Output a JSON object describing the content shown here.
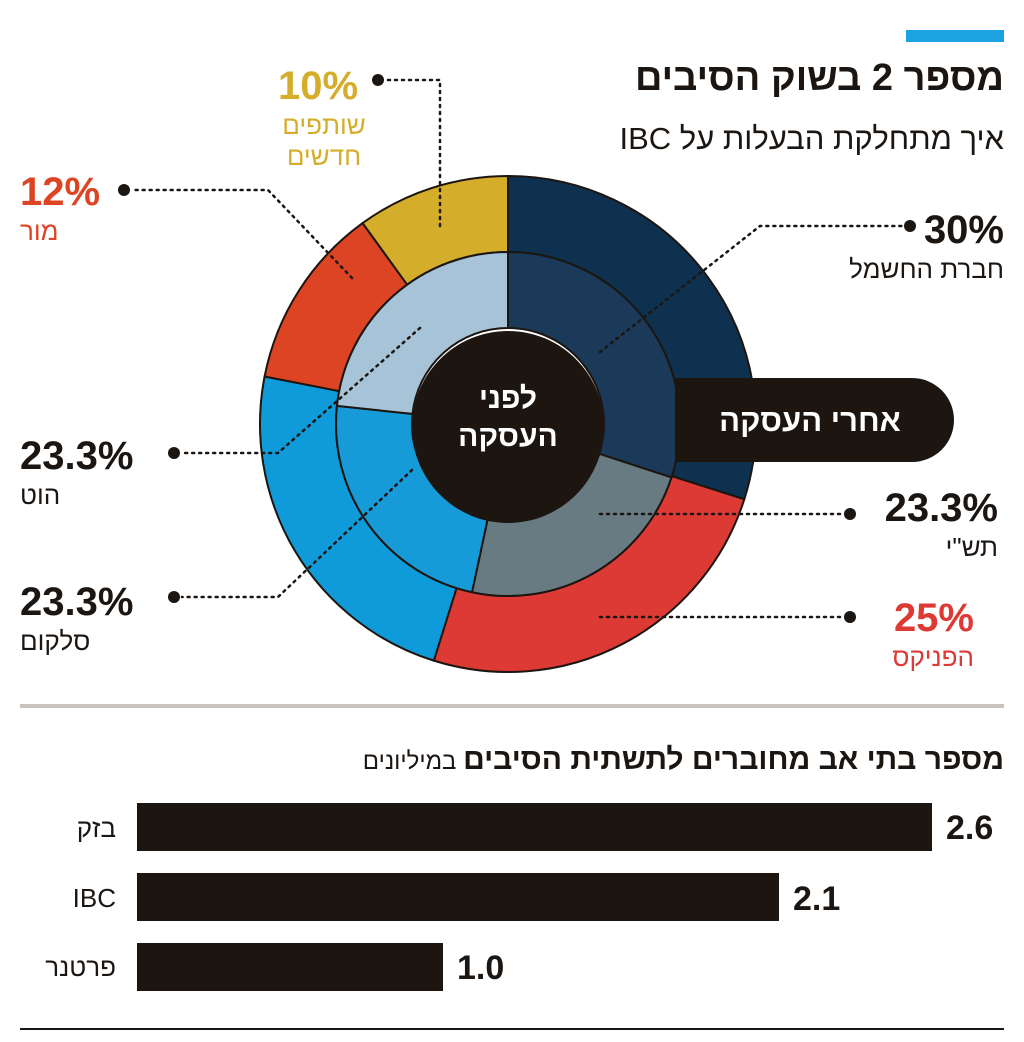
{
  "accent_bar_color": "#1aa3e0",
  "title": "מספר 2 בשוק הסיבים",
  "subtitle": "איך מתחלקת הבעלות על IBC",
  "chart_data": [
    {
      "type": "pie",
      "title": "איך מתחלקת הבעלות על IBC",
      "rings": [
        {
          "name": "לפני העסקה",
          "slices": [
            {
              "label": "חברת החשמל",
              "value": 30,
              "color": "#1b3a59"
            },
            {
              "label": "תש\"י",
              "value": 23.3,
              "color": "#687a82"
            },
            {
              "label": "סלקום",
              "value": 23.3,
              "color": "#179ad8"
            },
            {
              "label": "הוט",
              "value": 23.3,
              "color": "#a6c3d8"
            }
          ]
        },
        {
          "name": "אחרי העסקה",
          "slices": [
            {
              "label": "חברת החשמל",
              "value": 30,
              "color": "#0e3150"
            },
            {
              "label": "הפניקס",
              "value": 25,
              "color": "#dd3935"
            },
            {
              "label": "סלקום",
              "value": 23.3,
              "color": "#0f9bd9"
            },
            {
              "label": "מור",
              "value": 12,
              "color": "#dc4424"
            },
            {
              "label": "שותפים חדשים",
              "value": 10,
              "color": "#d4ae2b"
            }
          ]
        }
      ],
      "center_label": "לפני העסקה",
      "outer_label": "אחרי העסקה",
      "labels": [
        {
          "id": "hevrat-hashmal",
          "pct": "30%",
          "name": "חברת החשמל",
          "color": "#1c1612"
        },
        {
          "id": "tashi",
          "pct": "23.3%",
          "name": "תש\"י",
          "color": "#1c1612"
        },
        {
          "id": "phoenix",
          "pct": "25%",
          "name": "הפניקס",
          "color": "#dd3935"
        },
        {
          "id": "hot",
          "pct": "23.3%",
          "name": "הוט",
          "color": "#1c1612"
        },
        {
          "id": "cellcom",
          "pct": "23.3%",
          "name": "סלקום",
          "color": "#1c1612"
        },
        {
          "id": "mor",
          "pct": "12%",
          "name": "מור",
          "color": "#dc4424"
        },
        {
          "id": "new-partners",
          "pct": "10%",
          "name": "שותפים חדשים",
          "color": "#d4ae2b"
        }
      ]
    },
    {
      "type": "bar",
      "orientation": "horizontal",
      "title": "מספר בתי אב מחוברים לתשתית הסיבים",
      "unit": "במיליונים",
      "categories": [
        "בזק",
        "IBC",
        "פרטנר"
      ],
      "values": [
        2.6,
        2.1,
        1.0
      ],
      "value_labels": [
        "2.6",
        "2.1",
        "1.0"
      ],
      "xlim": [
        0,
        2.6
      ],
      "color": "#1c1510"
    }
  ]
}
